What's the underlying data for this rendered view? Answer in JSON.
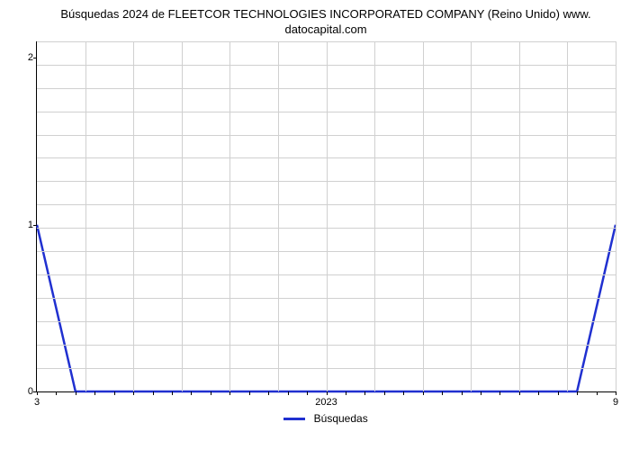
{
  "chart": {
    "type": "line",
    "title_line1": "Búsquedas 2024 de FLEETCOR TECHNOLOGIES INCORPORATED COMPANY (Reino Unido) www.",
    "title_line2": "datocapital.com",
    "title_fontsize": 13,
    "background_color": "#ffffff",
    "grid_color": "#d0d0d0",
    "axis_color": "#000000",
    "y": {
      "lim": [
        0,
        2.1
      ],
      "ticks": [
        0,
        1,
        2
      ],
      "grid_count": 15
    },
    "x": {
      "lim": [
        3,
        9
      ],
      "left_label": "3",
      "right_label": "9",
      "center_label": "2023",
      "minor_tick_count": 30,
      "grid_count": 12
    },
    "series": {
      "label": "Búsquedas",
      "color": "#2030d0",
      "line_width": 2.5,
      "points": [
        {
          "x": 3.0,
          "y": 1.0
        },
        {
          "x": 3.4,
          "y": 0.0
        },
        {
          "x": 8.6,
          "y": 0.0
        },
        {
          "x": 9.0,
          "y": 1.0
        }
      ]
    }
  }
}
